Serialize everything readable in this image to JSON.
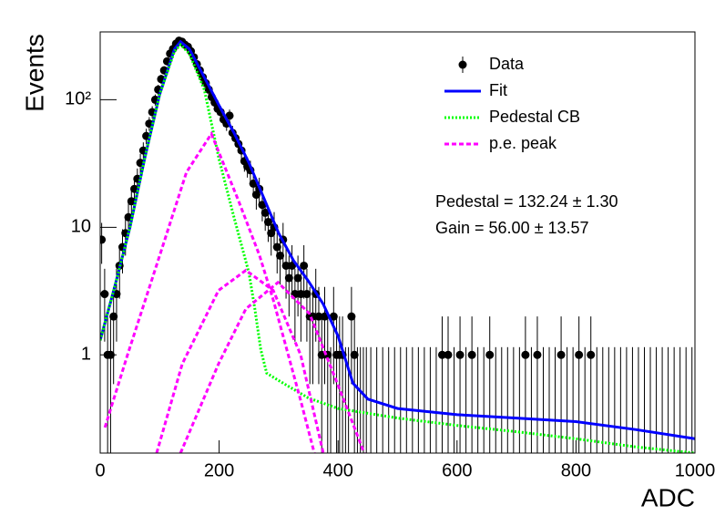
{
  "chart_data": {
    "type": "line",
    "xlabel": "ADC",
    "ylabel": "Events",
    "xlim": [
      0,
      1000
    ],
    "ylim": [
      0.17,
      340
    ],
    "log_y": true,
    "xticks": [
      0,
      200,
      400,
      600,
      800,
      1000
    ],
    "yticks": [
      1,
      10,
      {
        "value": 100,
        "label": "10²"
      }
    ],
    "legend": "upper right",
    "annotations": [
      "Pedestal = 132.24 ± 1.30",
      "Gain = 56.00 ± 13.57"
    ],
    "series": [
      {
        "name": "Data",
        "color": "#000000",
        "style": "points",
        "x": [
          2.5,
          7.5,
          12.5,
          17.5,
          22.5,
          27.5,
          32.5,
          37.5,
          42.5,
          47.5,
          52.5,
          57.5,
          62.5,
          67.5,
          72.5,
          77.5,
          82.5,
          87.5,
          92.5,
          97.5,
          102.5,
          107.5,
          112.5,
          117.5,
          122.5,
          127.5,
          132.5,
          137.5,
          142.5,
          147.5,
          152.5,
          157.5,
          162.5,
          167.5,
          172.5,
          177.5,
          182.5,
          187.5,
          192.5,
          197.5,
          202.5,
          207.5,
          212.5,
          217.5,
          222.5,
          227.5,
          232.5,
          237.5,
          242.5,
          247.5,
          252.5,
          257.5,
          262.5,
          267.5,
          272.5,
          277.5,
          282.5,
          287.5,
          292.5,
          297.5,
          302.5,
          307.5,
          312.5,
          317.5,
          322.5,
          327.5,
          332.5,
          337.5,
          342.5,
          347.5,
          352.5,
          357.5,
          362.5,
          367.5,
          372.5,
          377.5,
          382.5,
          387.5,
          392.5,
          397.5,
          402.5,
          407.5,
          412.5,
          417.5,
          422.5,
          427.5,
          432.5,
          437.5,
          442.5,
          447.5,
          455,
          465,
          475,
          485,
          495,
          505,
          515,
          525,
          535,
          545,
          555,
          565,
          575,
          585,
          595,
          605,
          615,
          625,
          635,
          645,
          655,
          665,
          675,
          685,
          695,
          705,
          715,
          725,
          735,
          745,
          755,
          765,
          775,
          785,
          795,
          805,
          815,
          825,
          835,
          845,
          855,
          865,
          875,
          885,
          895,
          905,
          915,
          925,
          935,
          945,
          955,
          965,
          975,
          985,
          995
        ],
        "values": [
          8,
          3,
          1,
          1,
          2,
          3,
          5,
          7,
          9,
          12,
          16,
          20,
          24,
          32,
          40,
          52,
          65,
          80,
          100,
          120,
          145,
          170,
          200,
          230,
          250,
          275,
          290,
          285,
          270,
          260,
          240,
          215,
          190,
          170,
          150,
          135,
          120,
          105,
          95,
          85,
          80,
          70,
          65,
          75,
          55,
          50,
          45,
          40,
          33,
          30,
          28,
          22,
          18,
          20,
          15,
          13,
          11,
          9,
          10,
          7,
          6,
          8,
          5,
          4,
          5,
          3,
          4,
          3,
          5,
          3,
          2,
          2,
          3,
          2,
          1,
          2,
          1,
          0,
          2,
          1,
          1,
          1,
          0,
          0,
          2,
          1,
          0,
          0,
          0,
          0,
          0,
          0,
          0,
          0,
          0,
          0,
          0,
          0,
          0,
          0,
          0,
          0,
          1,
          1,
          0,
          1,
          0,
          1,
          0,
          0,
          1,
          0,
          0,
          0,
          0,
          0,
          1,
          0,
          1,
          0,
          0,
          0,
          1,
          0,
          0,
          1,
          0,
          1,
          0,
          0,
          0,
          0,
          0,
          0,
          0,
          0,
          0,
          0,
          0,
          0,
          0,
          0,
          0,
          0,
          0
        ],
        "errors": [
          2.83,
          1.73,
          1,
          1,
          1.41,
          1.73,
          2.24,
          2.65,
          3,
          3.46,
          4,
          4.47,
          4.9,
          5.66,
          6.32,
          7.21,
          8.06,
          8.94,
          10,
          10.95,
          12.04,
          13.04,
          14.14,
          15.17,
          15.81,
          16.58,
          17.03,
          16.88,
          16.43,
          16.12,
          15.49,
          14.66,
          13.78,
          13.04,
          12.25,
          11.62,
          10.95,
          10.25,
          9.75,
          9.22,
          8.94,
          8.37,
          8.06,
          8.66,
          7.42,
          7.07,
          6.71,
          6.32,
          5.74,
          5.48,
          5.29,
          4.69,
          4.24,
          4.47,
          3.87,
          3.61,
          3.32,
          3,
          3.16,
          2.65,
          2.45,
          2.83,
          2.24,
          2,
          2.24,
          1.73,
          2,
          1.73,
          2.24,
          1.73,
          1.41,
          1.41,
          1.73,
          1.41,
          1,
          1.41,
          1,
          1.15,
          1.41,
          1,
          1,
          1,
          1.15,
          1.15,
          1.41,
          1,
          1.15,
          1.15,
          1.15,
          1.15,
          1.15,
          1.15,
          1.15,
          1.15,
          1.15,
          1.15,
          1.15,
          1.15,
          1.15,
          1.15,
          1.15,
          1.15,
          1,
          1,
          1.15,
          1,
          1.15,
          1,
          1.15,
          1.15,
          1,
          1.15,
          1.15,
          1.15,
          1.15,
          1.15,
          1,
          1.15,
          1,
          1.15,
          1.15,
          1.15,
          1,
          1.15,
          1.15,
          1,
          1.15,
          1,
          1.15,
          1.15,
          1.15,
          1.15,
          1.15,
          1.15,
          1.15,
          1.15,
          1.15,
          1.15,
          1.15,
          1.15,
          1.15,
          1.15,
          1.15,
          1.15,
          1.15
        ]
      },
      {
        "name": "Fit",
        "color": "#0000ff",
        "style": "solid",
        "x": [
          0,
          25,
          50,
          75,
          100,
          125,
          135,
          150,
          175,
          200,
          225,
          250,
          275,
          300,
          325,
          350,
          375,
          400,
          425,
          450,
          500,
          600,
          700,
          800,
          900,
          1000
        ],
        "values": [
          1.3,
          3.5,
          10,
          35,
          110,
          250,
          285,
          250,
          150,
          90,
          55,
          32,
          17,
          9,
          5.5,
          3.8,
          2.5,
          1.4,
          0.6,
          0.45,
          0.38,
          0.34,
          0.32,
          0.3,
          0.26,
          0.22
        ]
      },
      {
        "name": "Pedestal CB",
        "color": "#00ff00",
        "style": "dotted",
        "x": [
          0,
          25,
          50,
          75,
          100,
          125,
          135,
          150,
          175,
          200,
          225,
          250,
          260,
          270,
          280,
          300,
          350,
          400,
          500,
          600,
          700,
          800,
          900,
          1000
        ],
        "values": [
          1.3,
          3.5,
          10,
          35,
          110,
          240,
          270,
          230,
          120,
          34,
          12,
          4.4,
          2.3,
          1.1,
          0.72,
          0.63,
          0.46,
          0.38,
          0.32,
          0.28,
          0.25,
          0.22,
          0.19,
          0.17
        ]
      },
      {
        "name": "p.e. peak",
        "color": "#ff00ff",
        "style": "dashed",
        "x": [
          8,
          46,
          100,
          145,
          187,
          233,
          268,
          291,
          337,
          360,
          null,
          95,
          138,
          199,
          245,
          291,
          337,
          375,
          null,
          135,
          199,
          245,
          299,
          352,
          398,
          444
        ],
        "values": [
          0.27,
          1,
          6,
          27,
          54,
          16,
          6,
          2.7,
          0.44,
          0.17,
          null,
          0.17,
          0.85,
          3.2,
          4.6,
          3.2,
          1,
          0.17,
          null,
          0.17,
          0.85,
          2.3,
          3.7,
          2.1,
          0.61,
          0.17
        ]
      }
    ]
  }
}
